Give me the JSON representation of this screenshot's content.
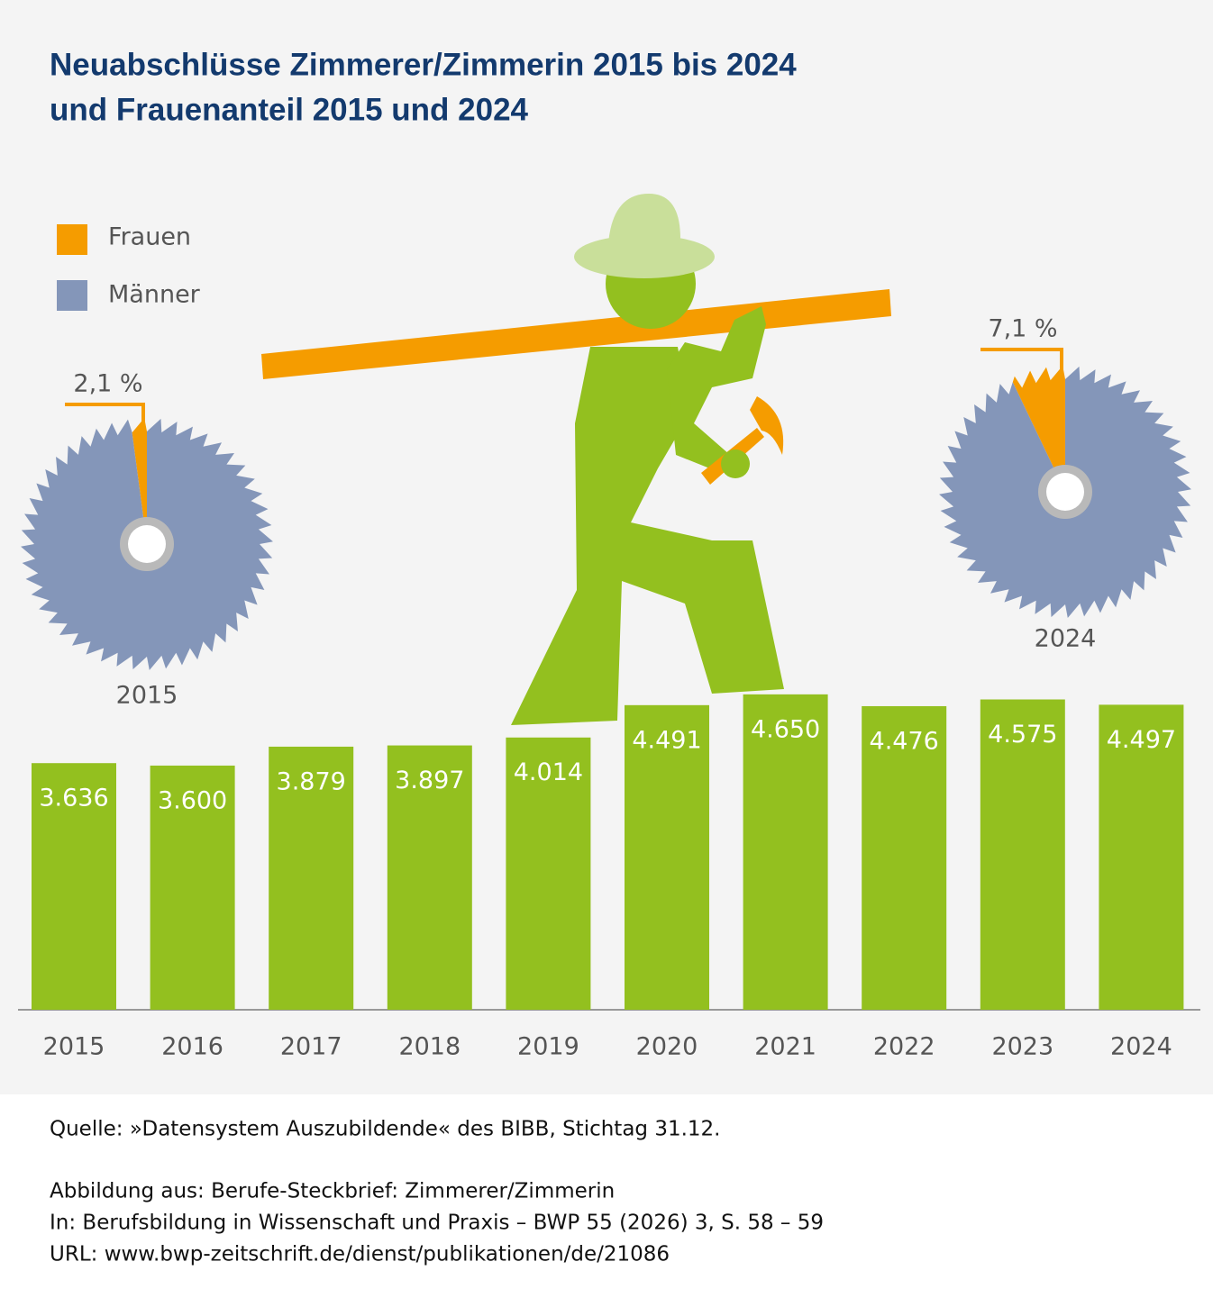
{
  "title": [
    "Neuabschlüsse Zimmerer/Zimmerin 2015 bis 2024",
    "und Frauenanteil 2015 und 2024"
  ],
  "legend": {
    "categories": [
      "Frauen",
      "Männer"
    ],
    "colors": [
      "#f59c00",
      "#8496b9"
    ]
  },
  "chart_data": [
    {
      "type": "bar",
      "categories": [
        "2015",
        "2016",
        "2017",
        "2018",
        "2019",
        "2020",
        "2021",
        "2022",
        "2023",
        "2024"
      ],
      "values": [
        3636,
        3600,
        3879,
        3897,
        4014,
        4491,
        4650,
        4476,
        4575,
        4497
      ],
      "value_labels": [
        "3.636",
        "3.600",
        "3.879",
        "3.897",
        "4.014",
        "4.491",
        "4.650",
        "4.476",
        "4.575",
        "4.497"
      ],
      "color": "#93c01f"
    },
    {
      "type": "pie",
      "label": "2015",
      "values": [
        2.1,
        97.9
      ],
      "value_labels": [
        "2,1 %",
        null
      ]
    },
    {
      "type": "pie",
      "label": "2024",
      "values": [
        7.1,
        92.9
      ],
      "value_labels": [
        "7,1 %",
        null
      ]
    }
  ],
  "footer": [
    "Quelle: »Datensystem Auszubildende« des BIBB, Stichtag 31.12.",
    "Abbildung aus: Berufe-Steckbrief: Zimmerer/Zimmerin",
    "In: Berufsbildung in Wissenschaft und Praxis – BWP 55 (2026) 3, S. 58 – 59",
    "URL: www.bwp-zeitschrift.de/dienst/publikationen/de/21086"
  ]
}
